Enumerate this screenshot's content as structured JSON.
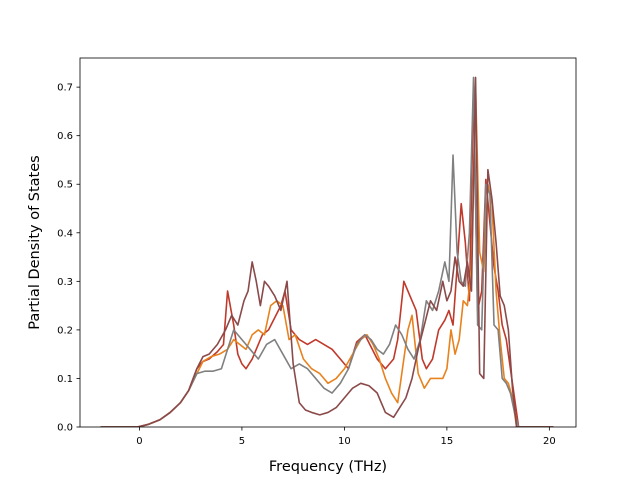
{
  "chart_data": {
    "type": "line",
    "title": "",
    "xlabel": "Frequency (THz)",
    "ylabel": "Partial Density of States",
    "xlim": [
      -2.9,
      21.3
    ],
    "ylim": [
      0.0,
      0.76
    ],
    "xticks": [
      0,
      5,
      10,
      15,
      20
    ],
    "yticks": [
      0.0,
      0.1,
      0.2,
      0.3,
      0.4,
      0.5,
      0.6,
      0.7
    ],
    "grid": false,
    "legend": "none",
    "series": [
      {
        "color": "#c0392b",
        "x": [
          -1.9,
          -0.1,
          0.4,
          1.0,
          1.5,
          2.0,
          2.4,
          2.8,
          3.1,
          3.4,
          3.8,
          4.1,
          4.3,
          4.6,
          4.8,
          5.0,
          5.2,
          5.5,
          5.8,
          6.0,
          6.3,
          6.6,
          6.9,
          7.1,
          7.4,
          7.8,
          8.2,
          8.6,
          9.0,
          9.4,
          9.8,
          10.2,
          10.6,
          11.0,
          11.3,
          11.6,
          12.0,
          12.4,
          12.6,
          12.9,
          13.2,
          13.5,
          13.8,
          14.0,
          14.3,
          14.6,
          14.9,
          15.1,
          15.3,
          15.5,
          15.7,
          15.9,
          16.1,
          16.3,
          16.5,
          16.7,
          16.9,
          17.1,
          17.3,
          17.5,
          17.7,
          17.9,
          18.1,
          18.3,
          18.5,
          20.2
        ],
        "y": [
          0.0,
          0.0,
          0.005,
          0.015,
          0.03,
          0.05,
          0.075,
          0.12,
          0.135,
          0.14,
          0.155,
          0.17,
          0.28,
          0.21,
          0.15,
          0.13,
          0.12,
          0.14,
          0.17,
          0.19,
          0.2,
          0.225,
          0.25,
          0.28,
          0.2,
          0.18,
          0.17,
          0.18,
          0.17,
          0.16,
          0.14,
          0.12,
          0.175,
          0.19,
          0.165,
          0.14,
          0.12,
          0.14,
          0.18,
          0.3,
          0.27,
          0.24,
          0.14,
          0.12,
          0.14,
          0.2,
          0.22,
          0.24,
          0.21,
          0.33,
          0.46,
          0.38,
          0.26,
          0.7,
          0.24,
          0.28,
          0.51,
          0.42,
          0.33,
          0.28,
          0.21,
          0.18,
          0.12,
          0.06,
          0.0,
          0.0
        ]
      },
      {
        "color": "#e8821e",
        "x": [
          -1.9,
          -0.1,
          0.4,
          1.0,
          1.5,
          2.0,
          2.4,
          2.8,
          3.1,
          3.5,
          3.9,
          4.3,
          4.6,
          4.9,
          5.2,
          5.5,
          5.8,
          6.1,
          6.4,
          6.7,
          7.0,
          7.3,
          7.6,
          8.0,
          8.4,
          8.8,
          9.2,
          9.6,
          10.0,
          10.4,
          10.8,
          11.1,
          11.4,
          11.7,
          12.0,
          12.3,
          12.6,
          12.9,
          13.1,
          13.3,
          13.6,
          13.9,
          14.2,
          14.5,
          14.8,
          15.0,
          15.2,
          15.4,
          15.6,
          15.8,
          16.0,
          16.2,
          16.4,
          16.6,
          16.8,
          17.0,
          17.2,
          17.4,
          17.6,
          17.8,
          18.0,
          18.2,
          18.4,
          20.2
        ],
        "y": [
          0.0,
          0.0,
          0.005,
          0.015,
          0.03,
          0.05,
          0.075,
          0.11,
          0.135,
          0.145,
          0.15,
          0.16,
          0.18,
          0.17,
          0.16,
          0.19,
          0.2,
          0.19,
          0.25,
          0.26,
          0.25,
          0.18,
          0.19,
          0.14,
          0.12,
          0.11,
          0.09,
          0.1,
          0.12,
          0.15,
          0.18,
          0.19,
          0.17,
          0.14,
          0.1,
          0.07,
          0.05,
          0.14,
          0.2,
          0.23,
          0.11,
          0.08,
          0.1,
          0.1,
          0.1,
          0.12,
          0.2,
          0.15,
          0.18,
          0.26,
          0.25,
          0.33,
          0.7,
          0.36,
          0.32,
          0.5,
          0.46,
          0.28,
          0.18,
          0.1,
          0.09,
          0.06,
          0.0,
          0.0
        ]
      },
      {
        "color": "#808080",
        "x": [
          -1.9,
          -0.1,
          0.4,
          1.0,
          1.5,
          2.0,
          2.4,
          2.8,
          3.2,
          3.6,
          4.0,
          4.3,
          4.6,
          5.0,
          5.4,
          5.8,
          6.2,
          6.6,
          7.0,
          7.4,
          7.8,
          8.2,
          8.6,
          9.0,
          9.4,
          9.8,
          10.2,
          10.6,
          11.0,
          11.3,
          11.6,
          11.9,
          12.2,
          12.5,
          12.8,
          13.1,
          13.4,
          13.7,
          14.0,
          14.3,
          14.6,
          14.9,
          15.1,
          15.3,
          15.5,
          15.7,
          15.9,
          16.1,
          16.3,
          16.5,
          16.7,
          16.9,
          17.1,
          17.3,
          17.5,
          17.7,
          17.9,
          18.1,
          18.3,
          18.5,
          20.2
        ],
        "y": [
          0.0,
          0.0,
          0.005,
          0.015,
          0.03,
          0.05,
          0.075,
          0.11,
          0.115,
          0.115,
          0.12,
          0.16,
          0.2,
          0.18,
          0.16,
          0.14,
          0.17,
          0.18,
          0.15,
          0.12,
          0.13,
          0.12,
          0.1,
          0.08,
          0.07,
          0.09,
          0.12,
          0.17,
          0.19,
          0.18,
          0.16,
          0.15,
          0.17,
          0.21,
          0.19,
          0.16,
          0.14,
          0.18,
          0.26,
          0.24,
          0.28,
          0.34,
          0.3,
          0.56,
          0.36,
          0.3,
          0.29,
          0.4,
          0.72,
          0.21,
          0.2,
          0.5,
          0.48,
          0.21,
          0.2,
          0.1,
          0.09,
          0.07,
          0.03,
          0.0,
          0.0
        ]
      },
      {
        "color": "#8b4a4a",
        "x": [
          -1.9,
          -0.1,
          0.4,
          1.0,
          1.5,
          2.0,
          2.4,
          2.8,
          3.1,
          3.4,
          3.8,
          4.2,
          4.5,
          4.8,
          5.1,
          5.3,
          5.5,
          5.7,
          5.9,
          6.1,
          6.3,
          6.6,
          6.9,
          7.2,
          7.5,
          7.8,
          8.1,
          8.4,
          8.8,
          9.2,
          9.6,
          10.0,
          10.4,
          10.8,
          11.2,
          11.6,
          12.0,
          12.4,
          12.7,
          13.0,
          13.3,
          13.6,
          13.9,
          14.2,
          14.5,
          14.8,
          15.0,
          15.2,
          15.4,
          15.6,
          15.8,
          16.0,
          16.2,
          16.4,
          16.6,
          16.8,
          17.0,
          17.2,
          17.4,
          17.6,
          17.8,
          18.0,
          18.2,
          18.4,
          20.2
        ],
        "y": [
          0.0,
          0.0,
          0.005,
          0.015,
          0.03,
          0.05,
          0.075,
          0.12,
          0.145,
          0.15,
          0.17,
          0.2,
          0.23,
          0.21,
          0.26,
          0.28,
          0.34,
          0.3,
          0.25,
          0.3,
          0.29,
          0.27,
          0.24,
          0.3,
          0.13,
          0.05,
          0.035,
          0.03,
          0.025,
          0.03,
          0.04,
          0.06,
          0.08,
          0.09,
          0.085,
          0.07,
          0.03,
          0.02,
          0.04,
          0.06,
          0.1,
          0.16,
          0.21,
          0.26,
          0.24,
          0.3,
          0.26,
          0.28,
          0.35,
          0.3,
          0.29,
          0.34,
          0.28,
          0.72,
          0.11,
          0.1,
          0.53,
          0.47,
          0.38,
          0.27,
          0.25,
          0.2,
          0.08,
          0.0,
          0.0
        ]
      }
    ]
  }
}
